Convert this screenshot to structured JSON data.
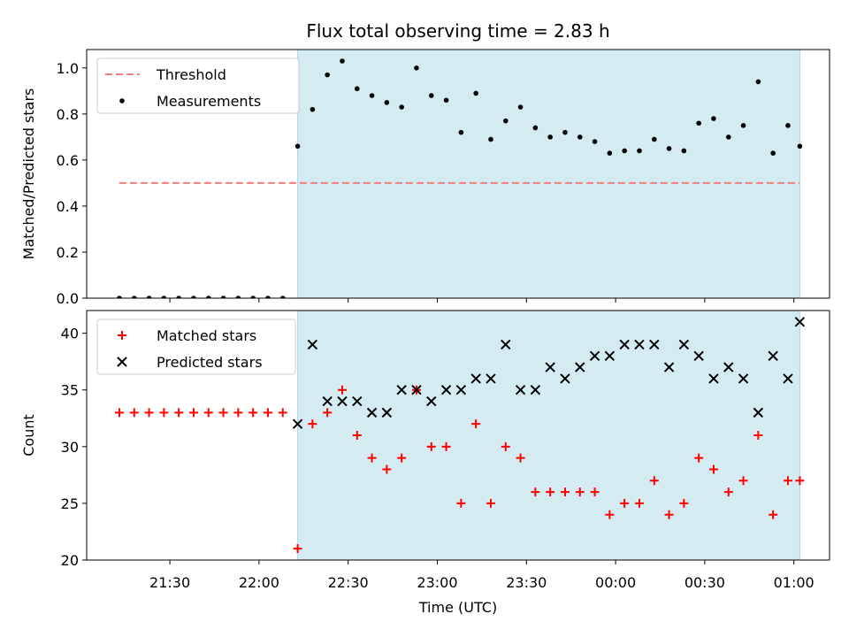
{
  "chart_data": {
    "type": "scatter",
    "title": "Flux total observing time = 2.83 h",
    "xlabel": "Time (UTC)",
    "x_axis_type": "time",
    "xlim": [
      "21:02",
      "01:12"
    ],
    "xticks": [
      "21:30",
      "22:00",
      "22:30",
      "23:00",
      "23:30",
      "00:00",
      "00:30",
      "01:00"
    ],
    "shaded_interval": {
      "start": "22:13",
      "end": "01:02",
      "color": "#d4ebf2"
    },
    "panels": [
      {
        "name": "ratio",
        "ylabel": "Matched/Predicted stars",
        "ylim": [
          0,
          1.08
        ],
        "yticks": [
          0.0,
          0.2,
          0.4,
          0.6,
          0.8,
          1.0
        ],
        "ytick_labels": [
          "0.0",
          "0.2",
          "0.4",
          "0.6",
          "0.8",
          "1.0"
        ],
        "legend_position": "top-left",
        "series": [
          {
            "name": "Threshold",
            "kind": "line",
            "style": "dashed",
            "color": "#f08080",
            "x": [
              "21:13",
              "01:02"
            ],
            "y": [
              0.5,
              0.5
            ]
          },
          {
            "name": "Measurements",
            "kind": "scatter",
            "marker": "dot",
            "color": "#000000",
            "x": [
              "21:13",
              "21:18",
              "21:23",
              "21:28",
              "21:33",
              "21:38",
              "21:43",
              "21:48",
              "21:53",
              "21:58",
              "22:03",
              "22:08",
              "22:13",
              "22:18",
              "22:23",
              "22:28",
              "22:33",
              "22:38",
              "22:43",
              "22:48",
              "22:53",
              "22:58",
              "23:03",
              "23:08",
              "23:13",
              "23:18",
              "23:23",
              "23:28",
              "23:33",
              "23:38",
              "23:43",
              "23:48",
              "23:53",
              "23:58",
              "00:03",
              "00:08",
              "00:13",
              "00:18",
              "00:23",
              "00:28",
              "00:33",
              "00:38",
              "00:43",
              "00:48",
              "00:53",
              "00:58",
              "01:02"
            ],
            "y": [
              0,
              0,
              0,
              0,
              0,
              0,
              0,
              0,
              0,
              0,
              0,
              0,
              0.66,
              0.82,
              0.97,
              1.03,
              0.91,
              0.88,
              0.85,
              0.83,
              1.0,
              0.88,
              0.86,
              0.72,
              0.89,
              0.69,
              0.77,
              0.83,
              0.74,
              0.7,
              0.72,
              0.7,
              0.68,
              0.63,
              0.64,
              0.64,
              0.69,
              0.65,
              0.64,
              0.76,
              0.78,
              0.7,
              0.75,
              0.94,
              0.63,
              0.75,
              0.66
            ]
          }
        ]
      },
      {
        "name": "count",
        "ylabel": "Count",
        "ylim": [
          20,
          42
        ],
        "yticks": [
          20,
          25,
          30,
          35,
          40
        ],
        "ytick_labels": [
          "20",
          "25",
          "30",
          "35",
          "40"
        ],
        "legend_position": "top-left",
        "series": [
          {
            "name": "Matched stars",
            "kind": "scatter",
            "marker": "plus",
            "color": "#ff0000",
            "x": [
              "21:13",
              "21:18",
              "21:23",
              "21:28",
              "21:33",
              "21:38",
              "21:43",
              "21:48",
              "21:53",
              "21:58",
              "22:03",
              "22:08",
              "22:13",
              "22:18",
              "22:23",
              "22:28",
              "22:33",
              "22:38",
              "22:43",
              "22:48",
              "22:53",
              "22:58",
              "23:03",
              "23:08",
              "23:13",
              "23:18",
              "23:23",
              "23:28",
              "23:33",
              "23:38",
              "23:43",
              "23:48",
              "23:53",
              "23:58",
              "00:03",
              "00:08",
              "00:13",
              "00:18",
              "00:23",
              "00:28",
              "00:33",
              "00:38",
              "00:43",
              "00:48",
              "00:53",
              "00:58",
              "01:02"
            ],
            "y": [
              33,
              33,
              33,
              33,
              33,
              33,
              33,
              33,
              33,
              33,
              33,
              33,
              21,
              32,
              33,
              35,
              31,
              29,
              28,
              29,
              35,
              30,
              30,
              25,
              32,
              25,
              30,
              29,
              26,
              26,
              26,
              26,
              26,
              24,
              25,
              25,
              27,
              24,
              25,
              29,
              28,
              26,
              27,
              31,
              24,
              27,
              27
            ]
          },
          {
            "name": "Predicted stars",
            "kind": "scatter",
            "marker": "x",
            "color": "#000000",
            "x": [
              "22:13",
              "22:18",
              "22:23",
              "22:28",
              "22:33",
              "22:38",
              "22:43",
              "22:48",
              "22:53",
              "22:58",
              "23:03",
              "23:08",
              "23:13",
              "23:18",
              "23:23",
              "23:28",
              "23:33",
              "23:38",
              "23:43",
              "23:48",
              "23:53",
              "23:58",
              "00:03",
              "00:08",
              "00:13",
              "00:18",
              "00:23",
              "00:28",
              "00:33",
              "00:38",
              "00:43",
              "00:48",
              "00:53",
              "00:58",
              "01:02"
            ],
            "y": [
              32,
              39,
              34,
              34,
              34,
              33,
              33,
              35,
              35,
              34,
              35,
              35,
              36,
              36,
              39,
              35,
              35,
              37,
              36,
              37,
              38,
              38,
              39,
              39,
              39,
              37,
              39,
              38,
              36,
              37,
              36,
              33,
              38,
              36,
              41
            ]
          }
        ]
      }
    ]
  }
}
